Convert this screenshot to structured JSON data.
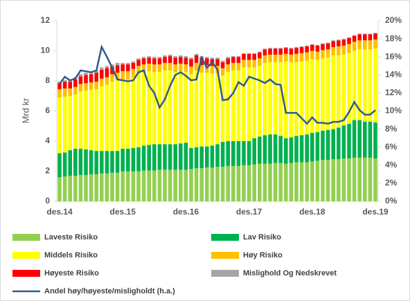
{
  "chart_data": {
    "type": "bar",
    "stacked": true,
    "y_label": "Mrd kr",
    "categories": [
      "des.14",
      null,
      null,
      null,
      null,
      null,
      null,
      null,
      null,
      null,
      null,
      null,
      "des.15",
      null,
      null,
      null,
      null,
      null,
      null,
      null,
      null,
      null,
      null,
      null,
      "des.16",
      null,
      null,
      null,
      null,
      null,
      null,
      null,
      null,
      null,
      null,
      null,
      "des.17",
      null,
      null,
      null,
      null,
      null,
      null,
      null,
      null,
      null,
      null,
      null,
      "des.18",
      null,
      null,
      null,
      null,
      null,
      null,
      null,
      null,
      null,
      null,
      null,
      "des.19"
    ],
    "ylim": [
      0,
      12
    ],
    "yticks": [
      0,
      2,
      4,
      6,
      8,
      10,
      12
    ],
    "y2lim": [
      0,
      20
    ],
    "y2ticks": [
      {
        "value": 0,
        "label": "0%"
      },
      {
        "value": 2,
        "label": "2%"
      },
      {
        "value": 4,
        "label": "4%"
      },
      {
        "value": 6,
        "label": "6%"
      },
      {
        "value": 8,
        "label": "8%"
      },
      {
        "value": 10,
        "label": "10%"
      },
      {
        "value": 12,
        "label": "12%"
      },
      {
        "value": 14,
        "label": "14%"
      },
      {
        "value": 16,
        "label": "16%"
      },
      {
        "value": 18,
        "label": "18%"
      },
      {
        "value": 20,
        "label": "20%"
      }
    ],
    "series": [
      {
        "name": "Laveste Risiko",
        "color": "#92d050",
        "values": [
          1.6,
          1.65,
          1.7,
          1.7,
          1.75,
          1.75,
          1.8,
          1.8,
          1.85,
          1.85,
          1.9,
          1.9,
          2.0,
          2.0,
          2.0,
          2.0,
          2.05,
          2.05,
          2.05,
          2.1,
          2.1,
          2.1,
          2.1,
          2.1,
          2.1,
          2.15,
          2.2,
          2.2,
          2.25,
          2.25,
          2.3,
          2.3,
          2.35,
          2.35,
          2.35,
          2.4,
          2.4,
          2.45,
          2.5,
          2.5,
          2.5,
          2.55,
          2.55,
          2.5,
          2.55,
          2.6,
          2.6,
          2.6,
          2.65,
          2.7,
          2.75,
          2.75,
          2.8,
          2.8,
          2.85,
          2.85,
          2.9,
          2.9,
          2.9,
          2.9,
          2.85
        ]
      },
      {
        "name": "Lav Risiko",
        "color": "#00b050",
        "values": [
          1.6,
          1.6,
          1.7,
          1.8,
          1.75,
          1.7,
          1.6,
          1.55,
          1.5,
          1.5,
          1.45,
          1.45,
          1.5,
          1.5,
          1.55,
          1.6,
          1.65,
          1.7,
          1.75,
          1.7,
          1.7,
          1.7,
          1.7,
          1.75,
          1.8,
          1.4,
          1.4,
          1.45,
          1.4,
          1.45,
          1.5,
          1.65,
          1.65,
          1.65,
          1.65,
          1.6,
          1.6,
          1.75,
          1.8,
          1.9,
          1.95,
          1.9,
          1.8,
          1.7,
          1.7,
          1.75,
          1.8,
          1.85,
          1.9,
          1.9,
          1.95,
          2.0,
          2.0,
          2.1,
          2.2,
          2.3,
          2.5,
          2.5,
          2.4,
          2.4,
          2.4
        ]
      },
      {
        "name": "Middels Risiko",
        "color": "#ffff00",
        "values": [
          3.7,
          3.7,
          3.6,
          3.6,
          3.8,
          3.9,
          4.0,
          4.1,
          4.3,
          4.4,
          4.6,
          4.7,
          4.6,
          4.6,
          4.7,
          4.9,
          4.9,
          4.9,
          4.8,
          4.8,
          4.9,
          4.9,
          4.8,
          4.8,
          4.7,
          4.9,
          5.1,
          4.9,
          4.9,
          4.8,
          4.7,
          4.4,
          4.6,
          4.7,
          4.7,
          4.9,
          4.9,
          4.7,
          4.7,
          4.8,
          4.8,
          4.8,
          4.9,
          5.1,
          5.0,
          4.9,
          4.9,
          4.9,
          4.9,
          4.8,
          4.8,
          4.8,
          4.9,
          4.8,
          4.7,
          4.7,
          4.6,
          4.7,
          4.8,
          4.8,
          4.9
        ]
      },
      {
        "name": "Høy Risiko",
        "color": "#ffc000",
        "values": [
          0.55,
          0.55,
          0.5,
          0.5,
          0.5,
          0.5,
          0.5,
          0.5,
          0.5,
          0.5,
          0.5,
          0.5,
          0.55,
          0.55,
          0.55,
          0.5,
          0.5,
          0.5,
          0.5,
          0.5,
          0.5,
          0.5,
          0.5,
          0.5,
          0.5,
          0.5,
          0.5,
          0.5,
          0.5,
          0.5,
          0.5,
          0.5,
          0.5,
          0.5,
          0.5,
          0.5,
          0.5,
          0.5,
          0.5,
          0.5,
          0.5,
          0.5,
          0.5,
          0.5,
          0.5,
          0.55,
          0.55,
          0.55,
          0.55,
          0.55,
          0.55,
          0.55,
          0.55,
          0.6,
          0.6,
          0.6,
          0.6,
          0.6,
          0.6,
          0.6,
          0.6
        ]
      },
      {
        "name": "Høyeste Risiko",
        "color": "#ff0000",
        "values": [
          0.4,
          0.45,
          0.45,
          0.5,
          0.5,
          0.55,
          0.55,
          0.6,
          0.6,
          0.6,
          0.5,
          0.5,
          0.45,
          0.45,
          0.4,
          0.4,
          0.4,
          0.4,
          0.4,
          0.4,
          0.4,
          0.45,
          0.45,
          0.45,
          0.45,
          0.5,
          0.5,
          0.5,
          0.45,
          0.45,
          0.45,
          0.4,
          0.4,
          0.4,
          0.4,
          0.4,
          0.4,
          0.4,
          0.4,
          0.4,
          0.4,
          0.4,
          0.4,
          0.4,
          0.4,
          0.4,
          0.4,
          0.4,
          0.4,
          0.4,
          0.4,
          0.4,
          0.4,
          0.4,
          0.4,
          0.4,
          0.4,
          0.4,
          0.4,
          0.4,
          0.4
        ]
      },
      {
        "name": "Mislighold Og Nedskrevet",
        "color": "#a6a6a6",
        "values": [
          0.1,
          0.1,
          0.15,
          0.15,
          0.15,
          0.15,
          0.15,
          0.15,
          0.15,
          0.15,
          0.15,
          0.15,
          0.1,
          0.1,
          0.1,
          0.1,
          0.1,
          0.1,
          0.1,
          0.1,
          0.1,
          0.1,
          0.1,
          0.1,
          0.1,
          0.1,
          0.1,
          0.1,
          0.1,
          0.1,
          0.1,
          0.1,
          0.1,
          0.05,
          0.05,
          0.05,
          0.05,
          0.05,
          0.05,
          0.05,
          0.05,
          0.05,
          0.05,
          0.05,
          0.05,
          0.05,
          0.05,
          0.05,
          0.05,
          0.05,
          0.05,
          0.05,
          0.05,
          0.05,
          0.05,
          0.05,
          0.05,
          0.05,
          0.05,
          0.05,
          0.05
        ]
      },
      {
        "name": "Andel høy/høyeste/misligholdt (h.a.)",
        "color": "#2e5b8a",
        "type": "line",
        "axis": "y2",
        "values": [
          13.0,
          13.8,
          13.4,
          13.6,
          14.5,
          14.4,
          14.3,
          14.5,
          17.1,
          16.0,
          14.8,
          13.5,
          13.4,
          13.3,
          13.4,
          14.3,
          14.5,
          12.8,
          12.0,
          10.4,
          11.3,
          12.8,
          14.0,
          14.3,
          13.9,
          13.4,
          13.5,
          15.9,
          14.8,
          15.4,
          14.6,
          11.2,
          11.3,
          12.0,
          13.2,
          12.8,
          13.8,
          13.6,
          13.4,
          13.1,
          13.5,
          13.0,
          12.9,
          9.8,
          9.8,
          9.8,
          9.2,
          8.6,
          9.3,
          8.7,
          8.7,
          8.6,
          8.8,
          8.8,
          9.0,
          9.9,
          11.0,
          10.1,
          9.6,
          9.6,
          10.1
        ]
      }
    ]
  }
}
